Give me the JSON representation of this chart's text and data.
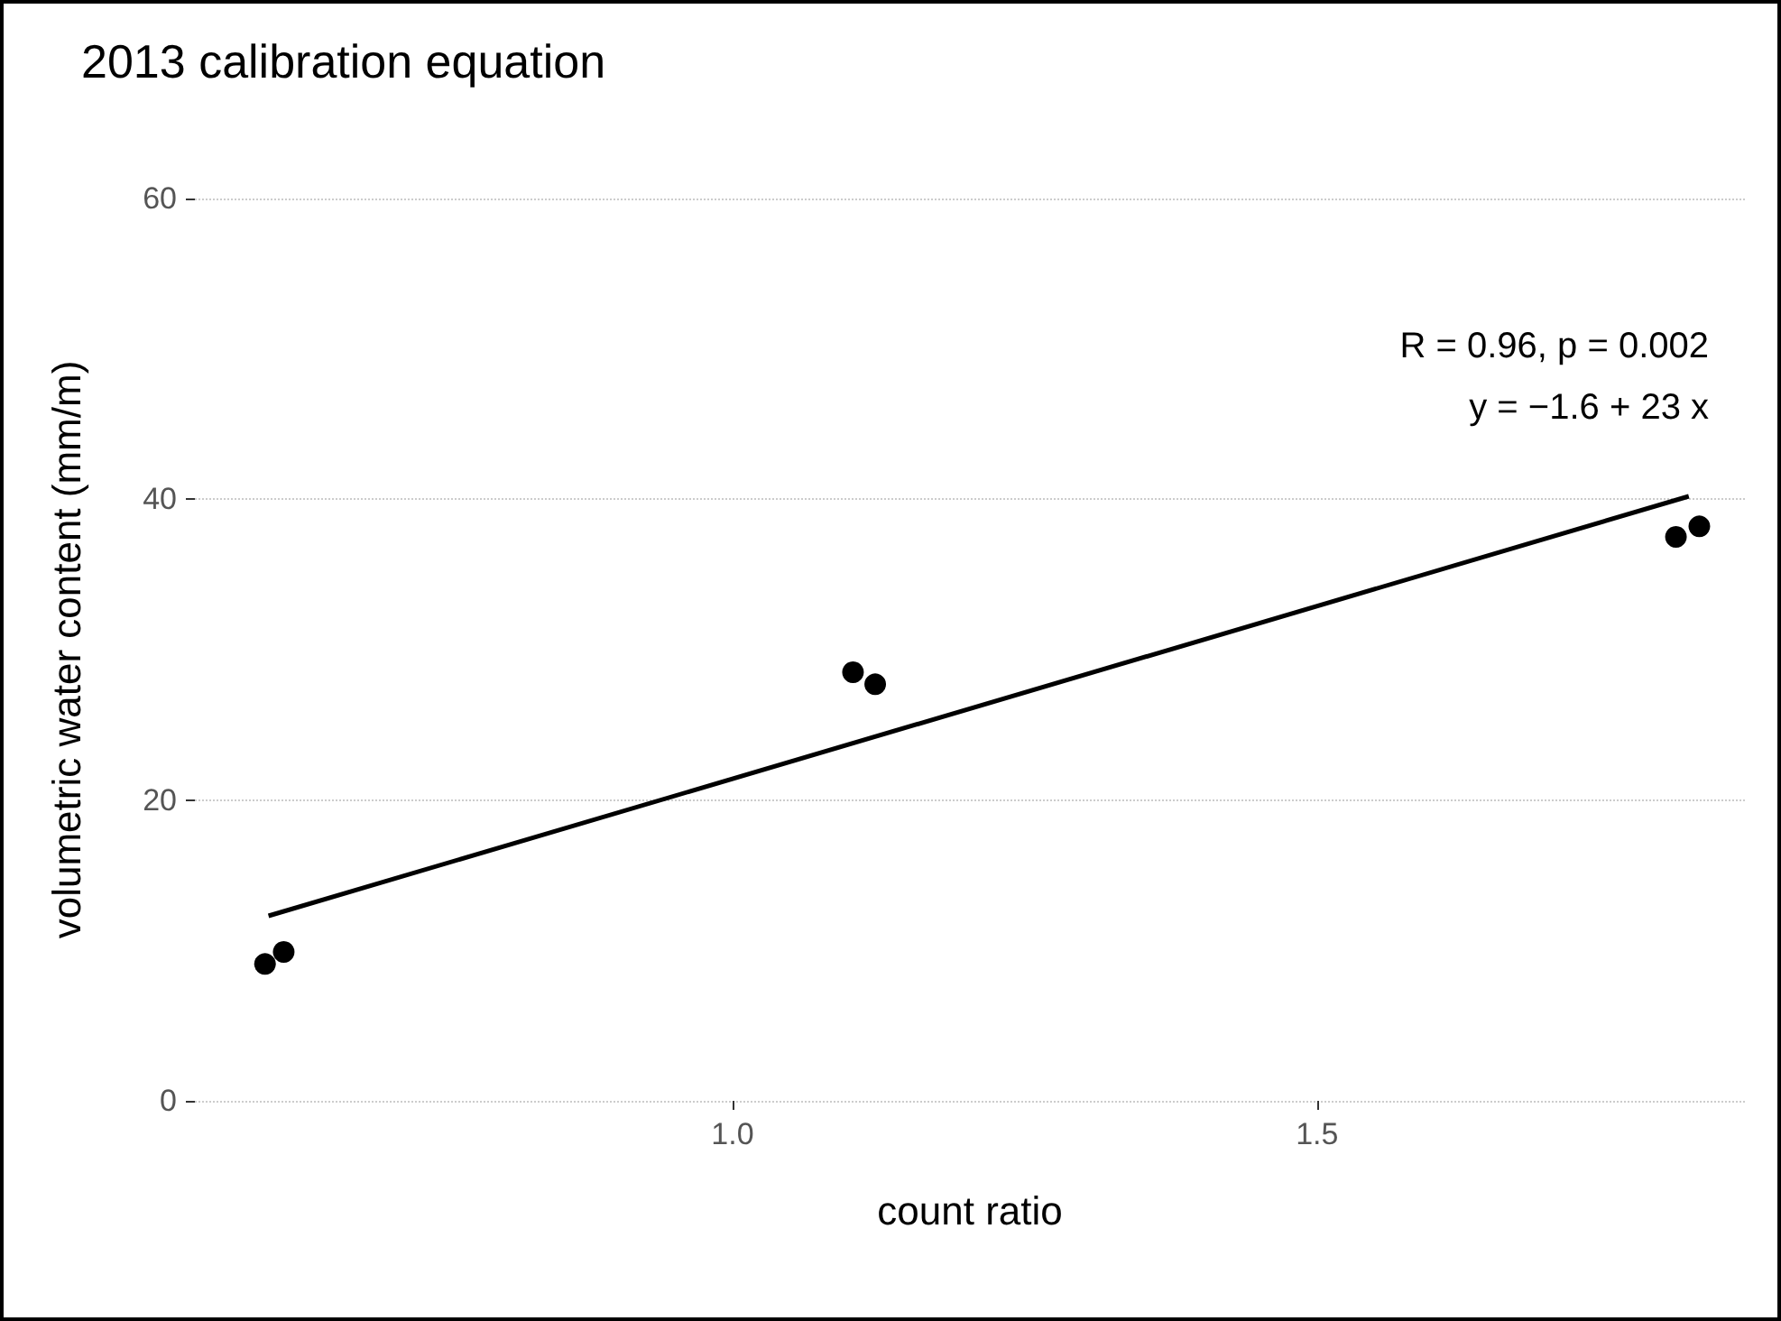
{
  "chart_data": {
    "type": "scatter",
    "title": "2013 calibration equation",
    "xlabel": "count ratio",
    "ylabel": "volumetric water content (mm/m)",
    "annotations": [
      "R = 0.96, p = 0.002",
      "y = −1.6 + 23 x"
    ],
    "series": [
      {
        "color": "#000000",
        "marker": "circle",
        "x": [
          0.6,
          0.616,
          1.103,
          1.122,
          1.807,
          1.827
        ],
        "values": [
          9.1,
          9.9,
          28.5,
          27.7,
          37.5,
          38.2
        ]
      },
      {
        "type": "line",
        "color": "#000000",
        "marker": "none",
        "x": [
          0.603,
          1.818
        ],
        "values": [
          12.3,
          40.2
        ]
      }
    ],
    "line_style": "solid",
    "xlim": [
      0.54,
      1.866
    ],
    "xticks": [
      {
        "value": 1,
        "label": "1.0"
      },
      1.5
    ],
    "ylim": [
      0,
      60
    ],
    "yticks": [
      0,
      20,
      40,
      60
    ],
    "grid": "y"
  }
}
